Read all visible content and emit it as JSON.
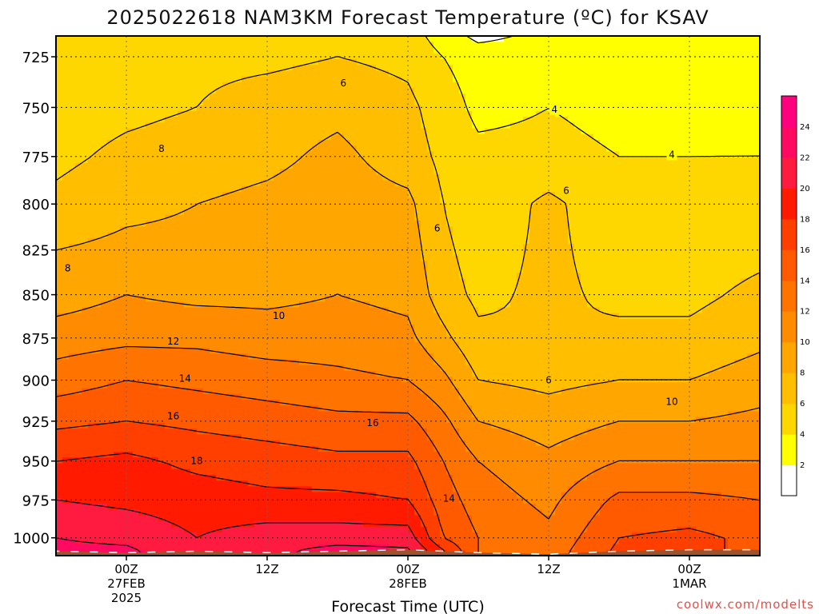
{
  "title": "2025022618 NAM3KM Forecast Temperature (ºC) for KSAV",
  "xlabel": "Forecast Time (UTC)",
  "credit": "coolwx.com/modelts",
  "colors": [
    "#ffffff",
    "#ffff00",
    "#ffd700",
    "#ffbf00",
    "#ffa600",
    "#ff8c00",
    "#ff7300",
    "#ff5a00",
    "#ff3f00",
    "#ff1a00",
    "#ff1a40",
    "#ff0a60",
    "#ff007f"
  ],
  "surface_color": "#a0522d",
  "chart_data": {
    "type": "heatmap",
    "title": "2025022618 NAM3KM Forecast Temperature (ºC) for KSAV",
    "xlabel": "Forecast Time (UTC)",
    "ylabel": "",
    "y_scale": "pressure (log)",
    "ylim": [
      1012,
      715
    ],
    "x_ticks": [
      {
        "h": 6,
        "label": "00Z",
        "sub": [
          "27FEB",
          "2025"
        ]
      },
      {
        "h": 18,
        "label": "12Z",
        "sub": []
      },
      {
        "h": 30,
        "label": "00Z",
        "sub": [
          "28FEB"
        ]
      },
      {
        "h": 42,
        "label": "12Z",
        "sub": []
      },
      {
        "h": 54,
        "label": "00Z",
        "sub": [
          "1MAR"
        ]
      }
    ],
    "xlim": [
      0,
      60
    ],
    "y_ticks": [
      725,
      750,
      775,
      800,
      825,
      850,
      875,
      900,
      925,
      950,
      975,
      1000
    ],
    "grid": true,
    "levels": [
      2,
      4,
      6,
      8,
      10,
      12,
      14,
      16,
      18,
      20,
      22,
      24
    ],
    "colorbar_labels": [
      "2",
      "4",
      "6",
      "8",
      "10",
      "12",
      "14",
      "16",
      "18",
      "20",
      "22",
      "24"
    ],
    "hours": [
      0,
      6,
      12,
      18,
      24,
      30,
      33,
      36,
      42,
      48,
      54,
      60
    ],
    "pressures": [
      1010,
      1000,
      975,
      950,
      925,
      900,
      875,
      850,
      825,
      800,
      775,
      750,
      725,
      715
    ],
    "temperature": [
      [
        22.5,
        22.5,
        20.5,
        21.5,
        23.0,
        22.5,
        18.5,
        14.0,
        13.0,
        16.5,
        16.5,
        15.5
      ],
      [
        22.0,
        21.5,
        20.0,
        21.0,
        21.0,
        21.0,
        16.0,
        14.0,
        12.5,
        16.0,
        16.5,
        15.5
      ],
      [
        20.0,
        19.5,
        19.0,
        18.5,
        18.5,
        18.0,
        15.0,
        13.0,
        11.5,
        14.5,
        14.5,
        14.0
      ],
      [
        18.0,
        18.5,
        17.5,
        17.0,
        16.5,
        16.5,
        14.0,
        12.0,
        10.5,
        12.0,
        12.0,
        12.0
      ],
      [
        15.5,
        16.0,
        15.5,
        15.0,
        14.5,
        14.5,
        12.5,
        10.0,
        9.0,
        10.0,
        10.0,
        10.5
      ],
      [
        13.0,
        14.0,
        13.5,
        13.0,
        12.5,
        12.0,
        10.5,
        8.0,
        7.5,
        8.0,
        8.0,
        9.0
      ],
      [
        11.0,
        11.5,
        11.5,
        11.0,
        11.0,
        10.5,
        8.5,
        6.5,
        6.0,
        6.5,
        6.5,
        7.5
      ],
      [
        9.0,
        10.0,
        9.5,
        9.5,
        10.0,
        9.5,
        7.0,
        5.5,
        6.5,
        5.5,
        5.5,
        6.5
      ],
      [
        8.0,
        8.5,
        8.5,
        8.5,
        9.5,
        9.0,
        6.5,
        5.0,
        6.5,
        5.0,
        5.0,
        5.5
      ],
      [
        6.5,
        7.5,
        8.0,
        8.5,
        9.0,
        8.5,
        6.0,
        4.5,
        6.5,
        4.5,
        4.5,
        5.0
      ],
      [
        5.5,
        6.5,
        7.0,
        7.5,
        8.5,
        7.0,
        5.5,
        4.5,
        4.5,
        4.0,
        4.0,
        4.0
      ],
      [
        5.0,
        5.5,
        6.0,
        7.0,
        7.5,
        6.5,
        5.0,
        3.5,
        4.0,
        3.5,
        3.5,
        3.5
      ],
      [
        4.5,
        5.0,
        5.5,
        5.5,
        6.0,
        5.5,
        4.0,
        3.0,
        3.0,
        2.5,
        3.0,
        3.0
      ],
      [
        4.0,
        4.5,
        5.0,
        5.0,
        5.5,
        5.0,
        3.0,
        1.5,
        2.5,
        2.5,
        2.5,
        2.5
      ]
    ],
    "contour_labels": [
      {
        "text": "6",
        "h": 24.5,
        "p": 738
      },
      {
        "text": "4",
        "h": 42.5,
        "p": 751
      },
      {
        "text": "4",
        "h": 52.5,
        "p": 774
      },
      {
        "text": "8",
        "h": 9,
        "p": 771
      },
      {
        "text": "6",
        "h": 43.5,
        "p": 793
      },
      {
        "text": "6",
        "h": 32.5,
        "p": 813
      },
      {
        "text": "8",
        "h": 1,
        "p": 835
      },
      {
        "text": "10",
        "h": 19,
        "p": 862
      },
      {
        "text": "12",
        "h": 10,
        "p": 877
      },
      {
        "text": "14",
        "h": 11,
        "p": 899
      },
      {
        "text": "6",
        "h": 42,
        "p": 900
      },
      {
        "text": "10",
        "h": 52.5,
        "p": 913
      },
      {
        "text": "16",
        "h": 10,
        "p": 922
      },
      {
        "text": "16",
        "h": 27,
        "p": 926
      },
      {
        "text": "18",
        "h": 12,
        "p": 950
      },
      {
        "text": "14",
        "h": 33.5,
        "p": 974
      }
    ]
  }
}
